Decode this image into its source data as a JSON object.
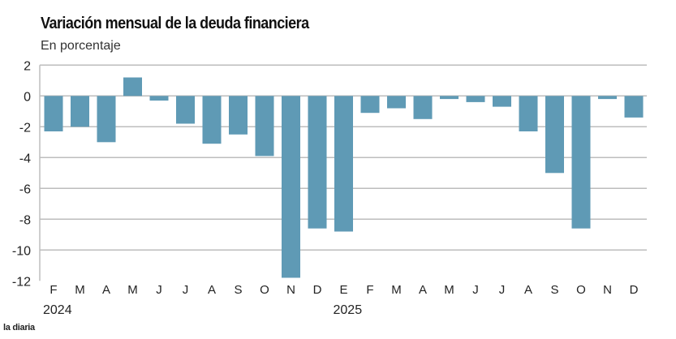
{
  "chart_data": {
    "type": "bar",
    "title": "Variación mensual  de la deuda financiera",
    "subtitle": "En porcentaje",
    "categories": [
      "F",
      "M",
      "A",
      "M",
      "J",
      "J",
      "A",
      "S",
      "O",
      "N",
      "D",
      "E",
      "F",
      "M",
      "A",
      "M",
      "J",
      "J",
      "A",
      "S",
      "O",
      "N",
      "D"
    ],
    "year_labels": [
      {
        "index": 0,
        "label": "2024"
      },
      {
        "index": 11,
        "label": "2025"
      }
    ],
    "values": [
      -2.3,
      -2.0,
      -3.0,
      1.2,
      -0.3,
      -1.8,
      -3.1,
      -2.5,
      -3.9,
      -11.8,
      -8.6,
      -8.8,
      -1.1,
      -0.8,
      -1.5,
      -0.2,
      -0.4,
      -0.7,
      -2.3,
      -5.0,
      -8.6,
      -0.2,
      -1.4
    ],
    "ylim": [
      -12,
      2
    ],
    "yticks": [
      2,
      0,
      -2,
      -4,
      -6,
      -8,
      -10,
      -12
    ],
    "grid": true,
    "bar_color": "#5f9ab5"
  },
  "brand": "la diaria"
}
